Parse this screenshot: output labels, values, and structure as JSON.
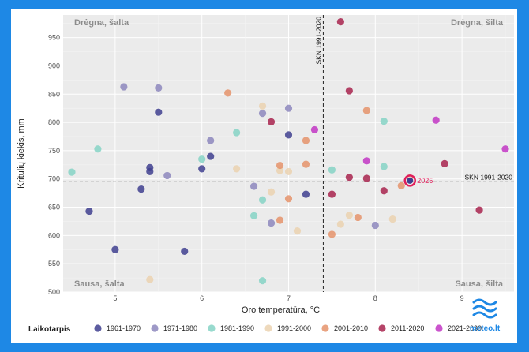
{
  "chart_data": {
    "type": "scatter",
    "xlabel": "Oro temperatūra, °C",
    "ylabel": "Kritulių kiekis, mm",
    "xlim": [
      4.4,
      9.6
    ],
    "ylim": [
      500,
      990
    ],
    "xticks": [
      "5",
      "6",
      "7",
      "8",
      "9"
    ],
    "yticks": [
      "500",
      "550",
      "600",
      "650",
      "700",
      "750",
      "800",
      "850",
      "900",
      "950"
    ],
    "grid": true,
    "quadrants": {
      "top_left": "Drėgna, šalta",
      "top_right": "Drėgna, šilta",
      "bottom_left": "Sausa, šalta",
      "bottom_right": "Sausa, šilta"
    },
    "reference_lines": {
      "vertical": {
        "x": 7.4,
        "label": "SKN 1991-2020"
      },
      "horizontal": {
        "y": 695,
        "label": "SKN 1991-2020"
      }
    },
    "legend": {
      "title": "Laikotarpis",
      "placement": "bottom"
    },
    "highlight": {
      "label": "2025",
      "x": 8.4,
      "y": 697,
      "color": "#e01e5a"
    },
    "series": [
      {
        "name": "1961-1970",
        "color": "#3f3f8f",
        "points": [
          [
            4.7,
            643
          ],
          [
            5.0,
            575
          ],
          [
            5.3,
            682
          ],
          [
            5.4,
            720
          ],
          [
            5.4,
            713
          ],
          [
            5.5,
            818
          ],
          [
            5.8,
            572
          ],
          [
            6.0,
            718
          ],
          [
            6.1,
            740
          ],
          [
            7.0,
            778
          ],
          [
            7.2,
            673
          ]
        ]
      },
      {
        "name": "1971-1980",
        "color": "#8d87bd",
        "points": [
          [
            5.1,
            863
          ],
          [
            5.5,
            861
          ],
          [
            5.6,
            706
          ],
          [
            6.1,
            768
          ],
          [
            6.6,
            687
          ],
          [
            6.7,
            816
          ],
          [
            6.8,
            622
          ],
          [
            7.0,
            825
          ],
          [
            8.0,
            618
          ]
        ]
      },
      {
        "name": "1981-1990",
        "color": "#86d4c5",
        "points": [
          [
            4.5,
            712
          ],
          [
            4.8,
            753
          ],
          [
            6.0,
            735
          ],
          [
            6.4,
            782
          ],
          [
            6.6,
            635
          ],
          [
            6.7,
            663
          ],
          [
            6.7,
            520
          ],
          [
            7.5,
            716
          ],
          [
            8.1,
            802
          ],
          [
            8.1,
            722
          ]
        ]
      },
      {
        "name": "1991-2000",
        "color": "#ebd2b0",
        "points": [
          [
            5.4,
            522
          ],
          [
            6.4,
            718
          ],
          [
            6.7,
            829
          ],
          [
            6.8,
            677
          ],
          [
            6.9,
            715
          ],
          [
            7.0,
            713
          ],
          [
            7.1,
            608
          ],
          [
            7.6,
            620
          ],
          [
            7.7,
            636
          ],
          [
            8.2,
            629
          ],
          [
            8.4,
            702
          ]
        ]
      },
      {
        "name": "2001-2010",
        "color": "#e5936b",
        "points": [
          [
            6.3,
            852
          ],
          [
            6.9,
            724
          ],
          [
            6.9,
            627
          ],
          [
            7.0,
            665
          ],
          [
            7.2,
            768
          ],
          [
            7.2,
            726
          ],
          [
            7.5,
            602
          ],
          [
            7.8,
            632
          ],
          [
            7.9,
            821
          ],
          [
            8.3,
            688
          ]
        ]
      },
      {
        "name": "2011-2020",
        "color": "#a8234e",
        "points": [
          [
            6.8,
            801
          ],
          [
            7.6,
            978
          ],
          [
            7.7,
            856
          ],
          [
            7.5,
            673
          ],
          [
            7.7,
            703
          ],
          [
            7.9,
            701
          ],
          [
            8.1,
            679
          ],
          [
            8.8,
            727
          ],
          [
            9.2,
            645
          ]
        ]
      },
      {
        "name": "2021-2030",
        "color": "#c236c4",
        "points": [
          [
            7.3,
            787
          ],
          [
            7.9,
            732
          ],
          [
            8.7,
            804
          ],
          [
            9.5,
            753
          ]
        ]
      }
    ],
    "logo_text": "meteo.lt"
  }
}
